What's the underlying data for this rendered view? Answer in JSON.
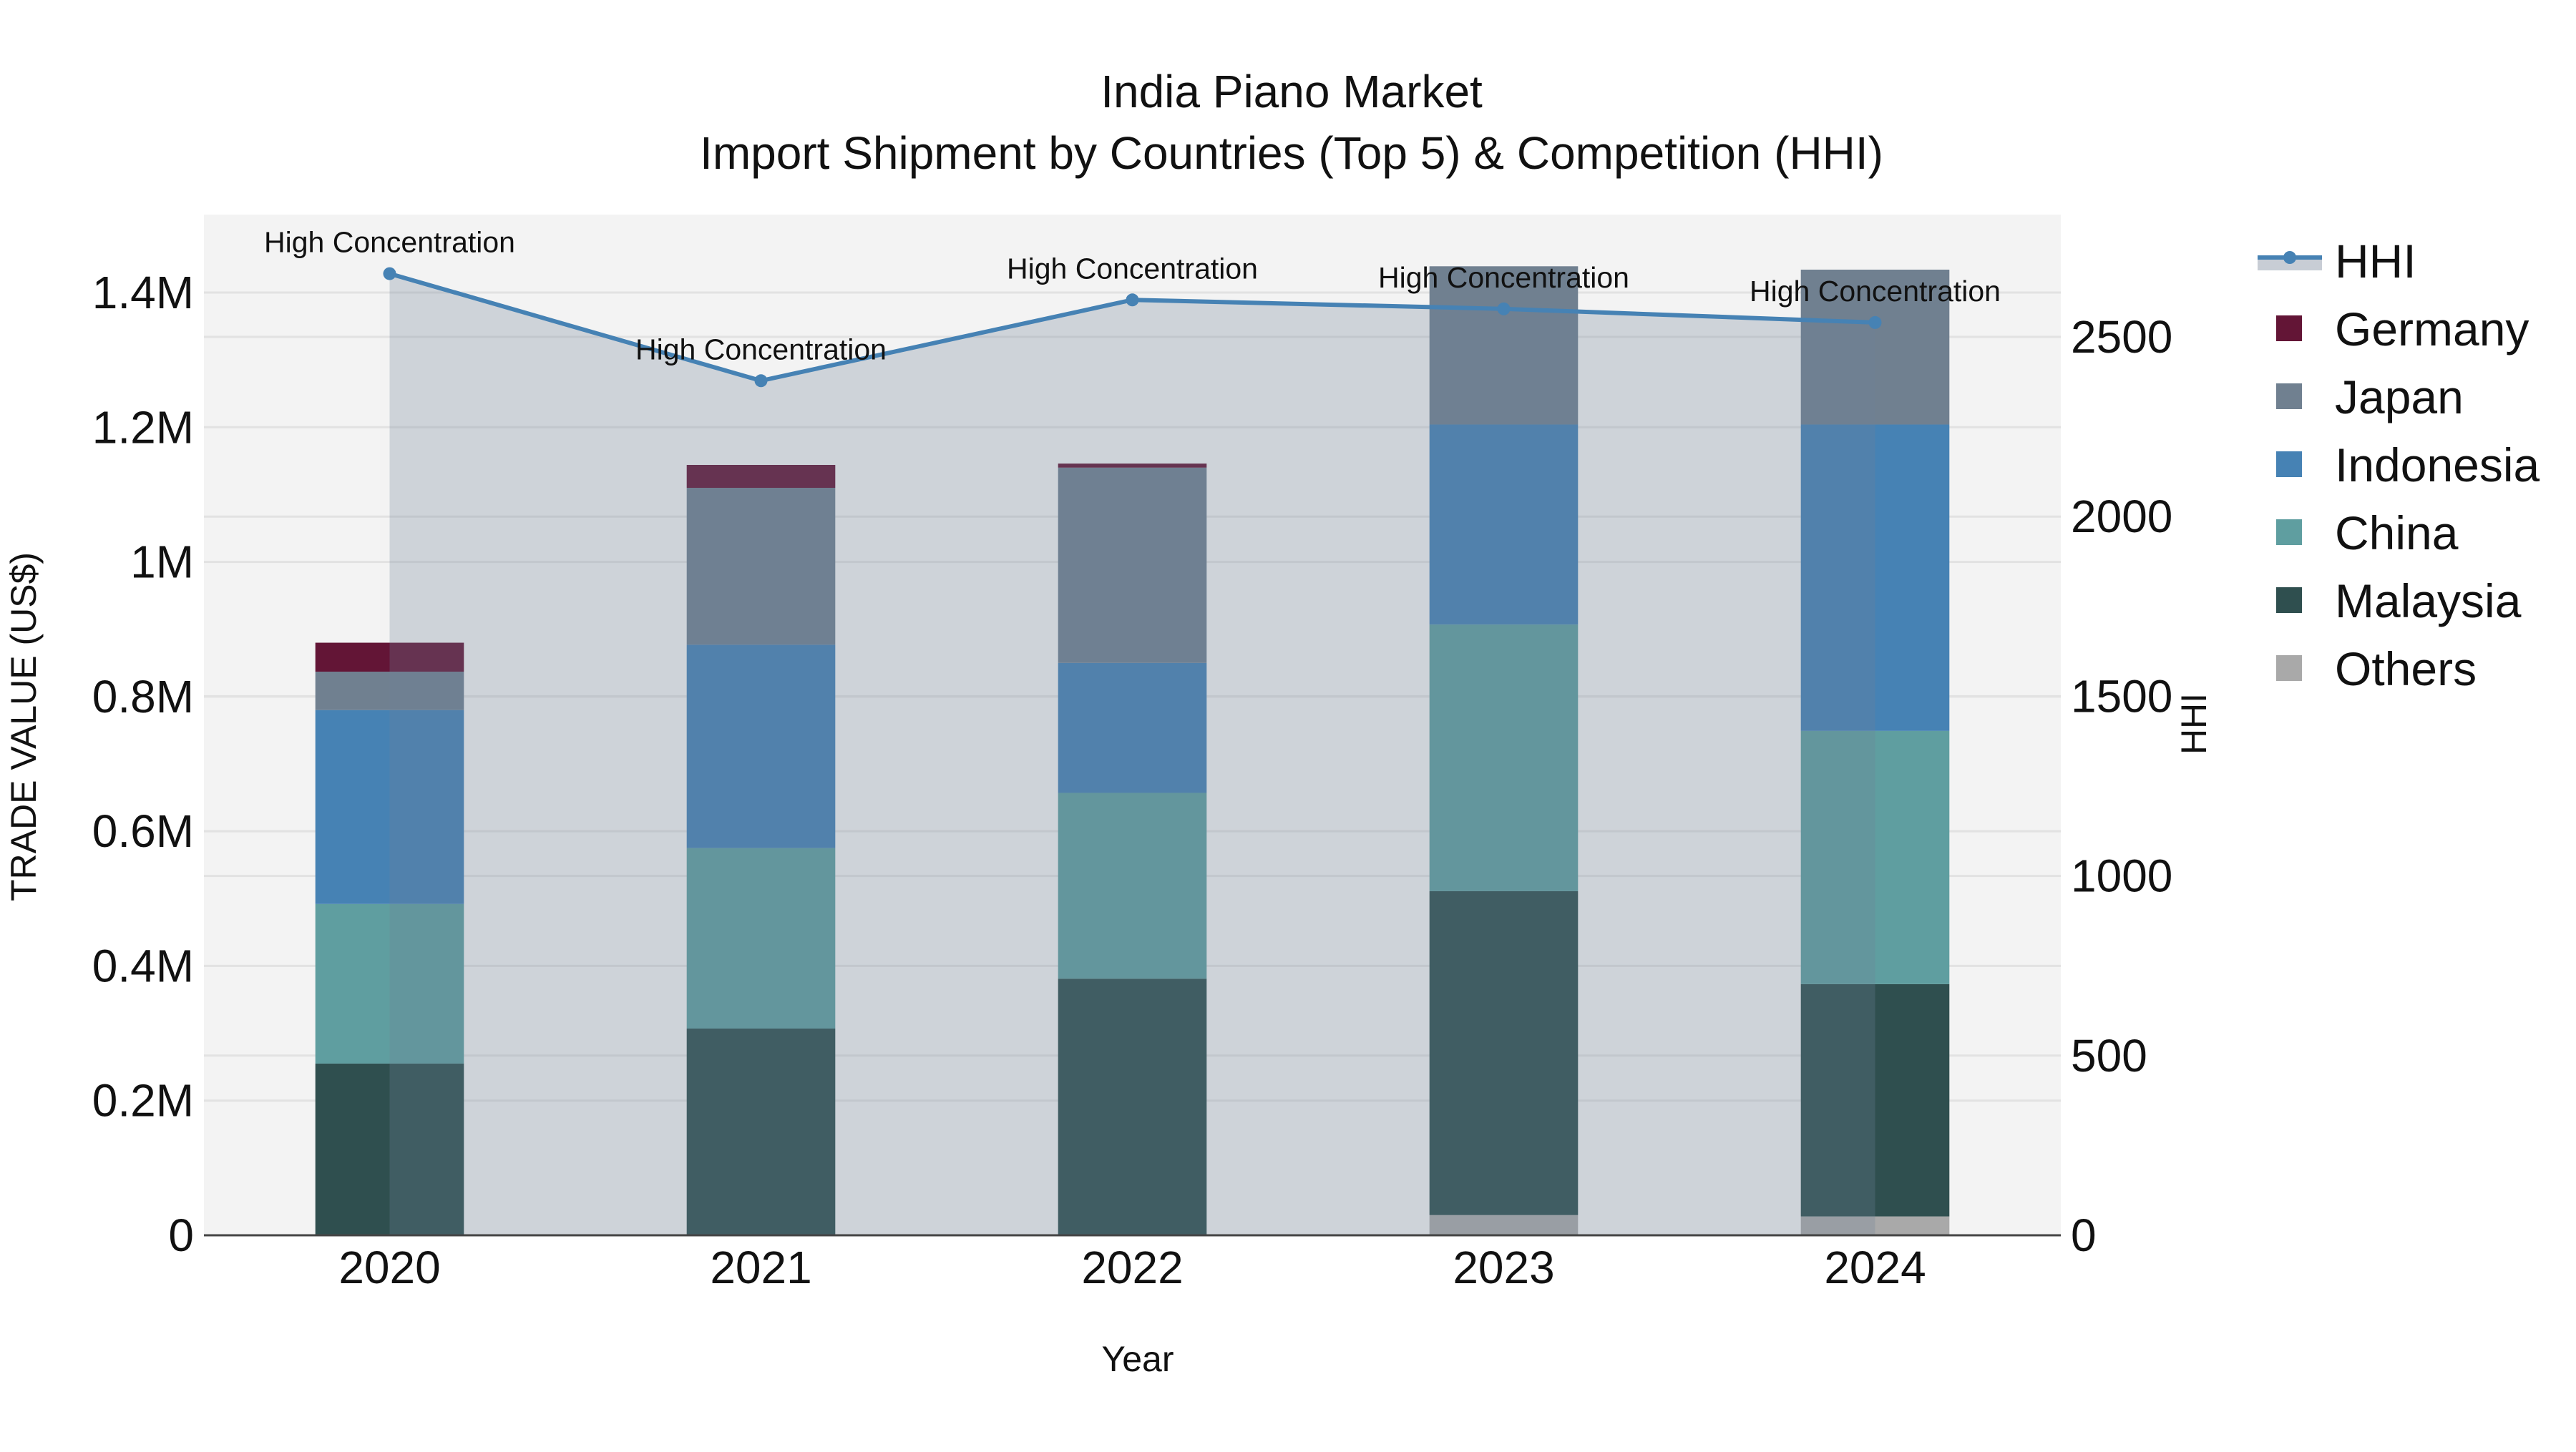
{
  "chart_data": {
    "type": "bar",
    "subtype": "stacked bar with secondary-axis line (area fill)",
    "title": "India Piano Market",
    "subtitle": "Import Shipment by Countries (Top 5) & Competition (HHI)",
    "xlabel": "Year",
    "ylabel": "TRADE VALUE (US$)",
    "y2label": "HHI",
    "categories": [
      "2020",
      "2021",
      "2022",
      "2023",
      "2024"
    ],
    "series": [
      {
        "name": "Malaysia",
        "color": "#2f4f4f",
        "values": [
          255000,
          307000,
          381000,
          481000,
          345000
        ]
      },
      {
        "name": "China",
        "color": "#5f9ea0",
        "values": [
          237000,
          268000,
          276000,
          396000,
          376000
        ]
      },
      {
        "name": "Indonesia",
        "color": "#4682b4",
        "values": [
          288000,
          302000,
          193000,
          297000,
          455000
        ]
      },
      {
        "name": "Japan",
        "color": "#708090",
        "values": [
          57000,
          233000,
          290000,
          235000,
          230000
        ]
      },
      {
        "name": "Germany",
        "color": "#631536",
        "values": [
          43000,
          34000,
          6000,
          0,
          0
        ]
      },
      {
        "name": "Others",
        "color": "#a9a9a9",
        "values": [
          0,
          0,
          0,
          30000,
          28000
        ]
      }
    ],
    "stack_order_bottom_to_top": [
      "Others",
      "Malaysia",
      "China",
      "Indonesia",
      "Japan",
      "Germany"
    ],
    "line_series": {
      "name": "HHI",
      "axis": "y2",
      "color": "#4682b4",
      "fill": "tozeroy",
      "values": [
        2676,
        2378,
        2603,
        2578,
        2540
      ],
      "annotations": [
        "High Concentration",
        "High Concentration",
        "High Concentration",
        "High Concentration",
        "High Concentration"
      ]
    },
    "yaxis": {
      "range": [
        0,
        1520000
      ],
      "ticks": [
        0,
        200000,
        400000,
        600000,
        800000,
        1000000,
        1200000,
        1400000
      ],
      "tick_labels": [
        "0",
        "0.2M",
        "0.4M",
        "0.6M",
        "0.8M",
        "1M",
        "1.2M",
        "1.4M"
      ]
    },
    "y2axis": {
      "range": [
        0,
        2836
      ],
      "ticks": [
        0,
        500,
        1000,
        1500,
        2000,
        2500
      ],
      "tick_labels": [
        "0",
        "500",
        "1000",
        "1500",
        "2000",
        "2500"
      ]
    },
    "grid": true,
    "legend_position": "right",
    "legend": [
      "HHI",
      "Germany",
      "Japan",
      "Indonesia",
      "China",
      "Malaysia",
      "Others"
    ]
  }
}
